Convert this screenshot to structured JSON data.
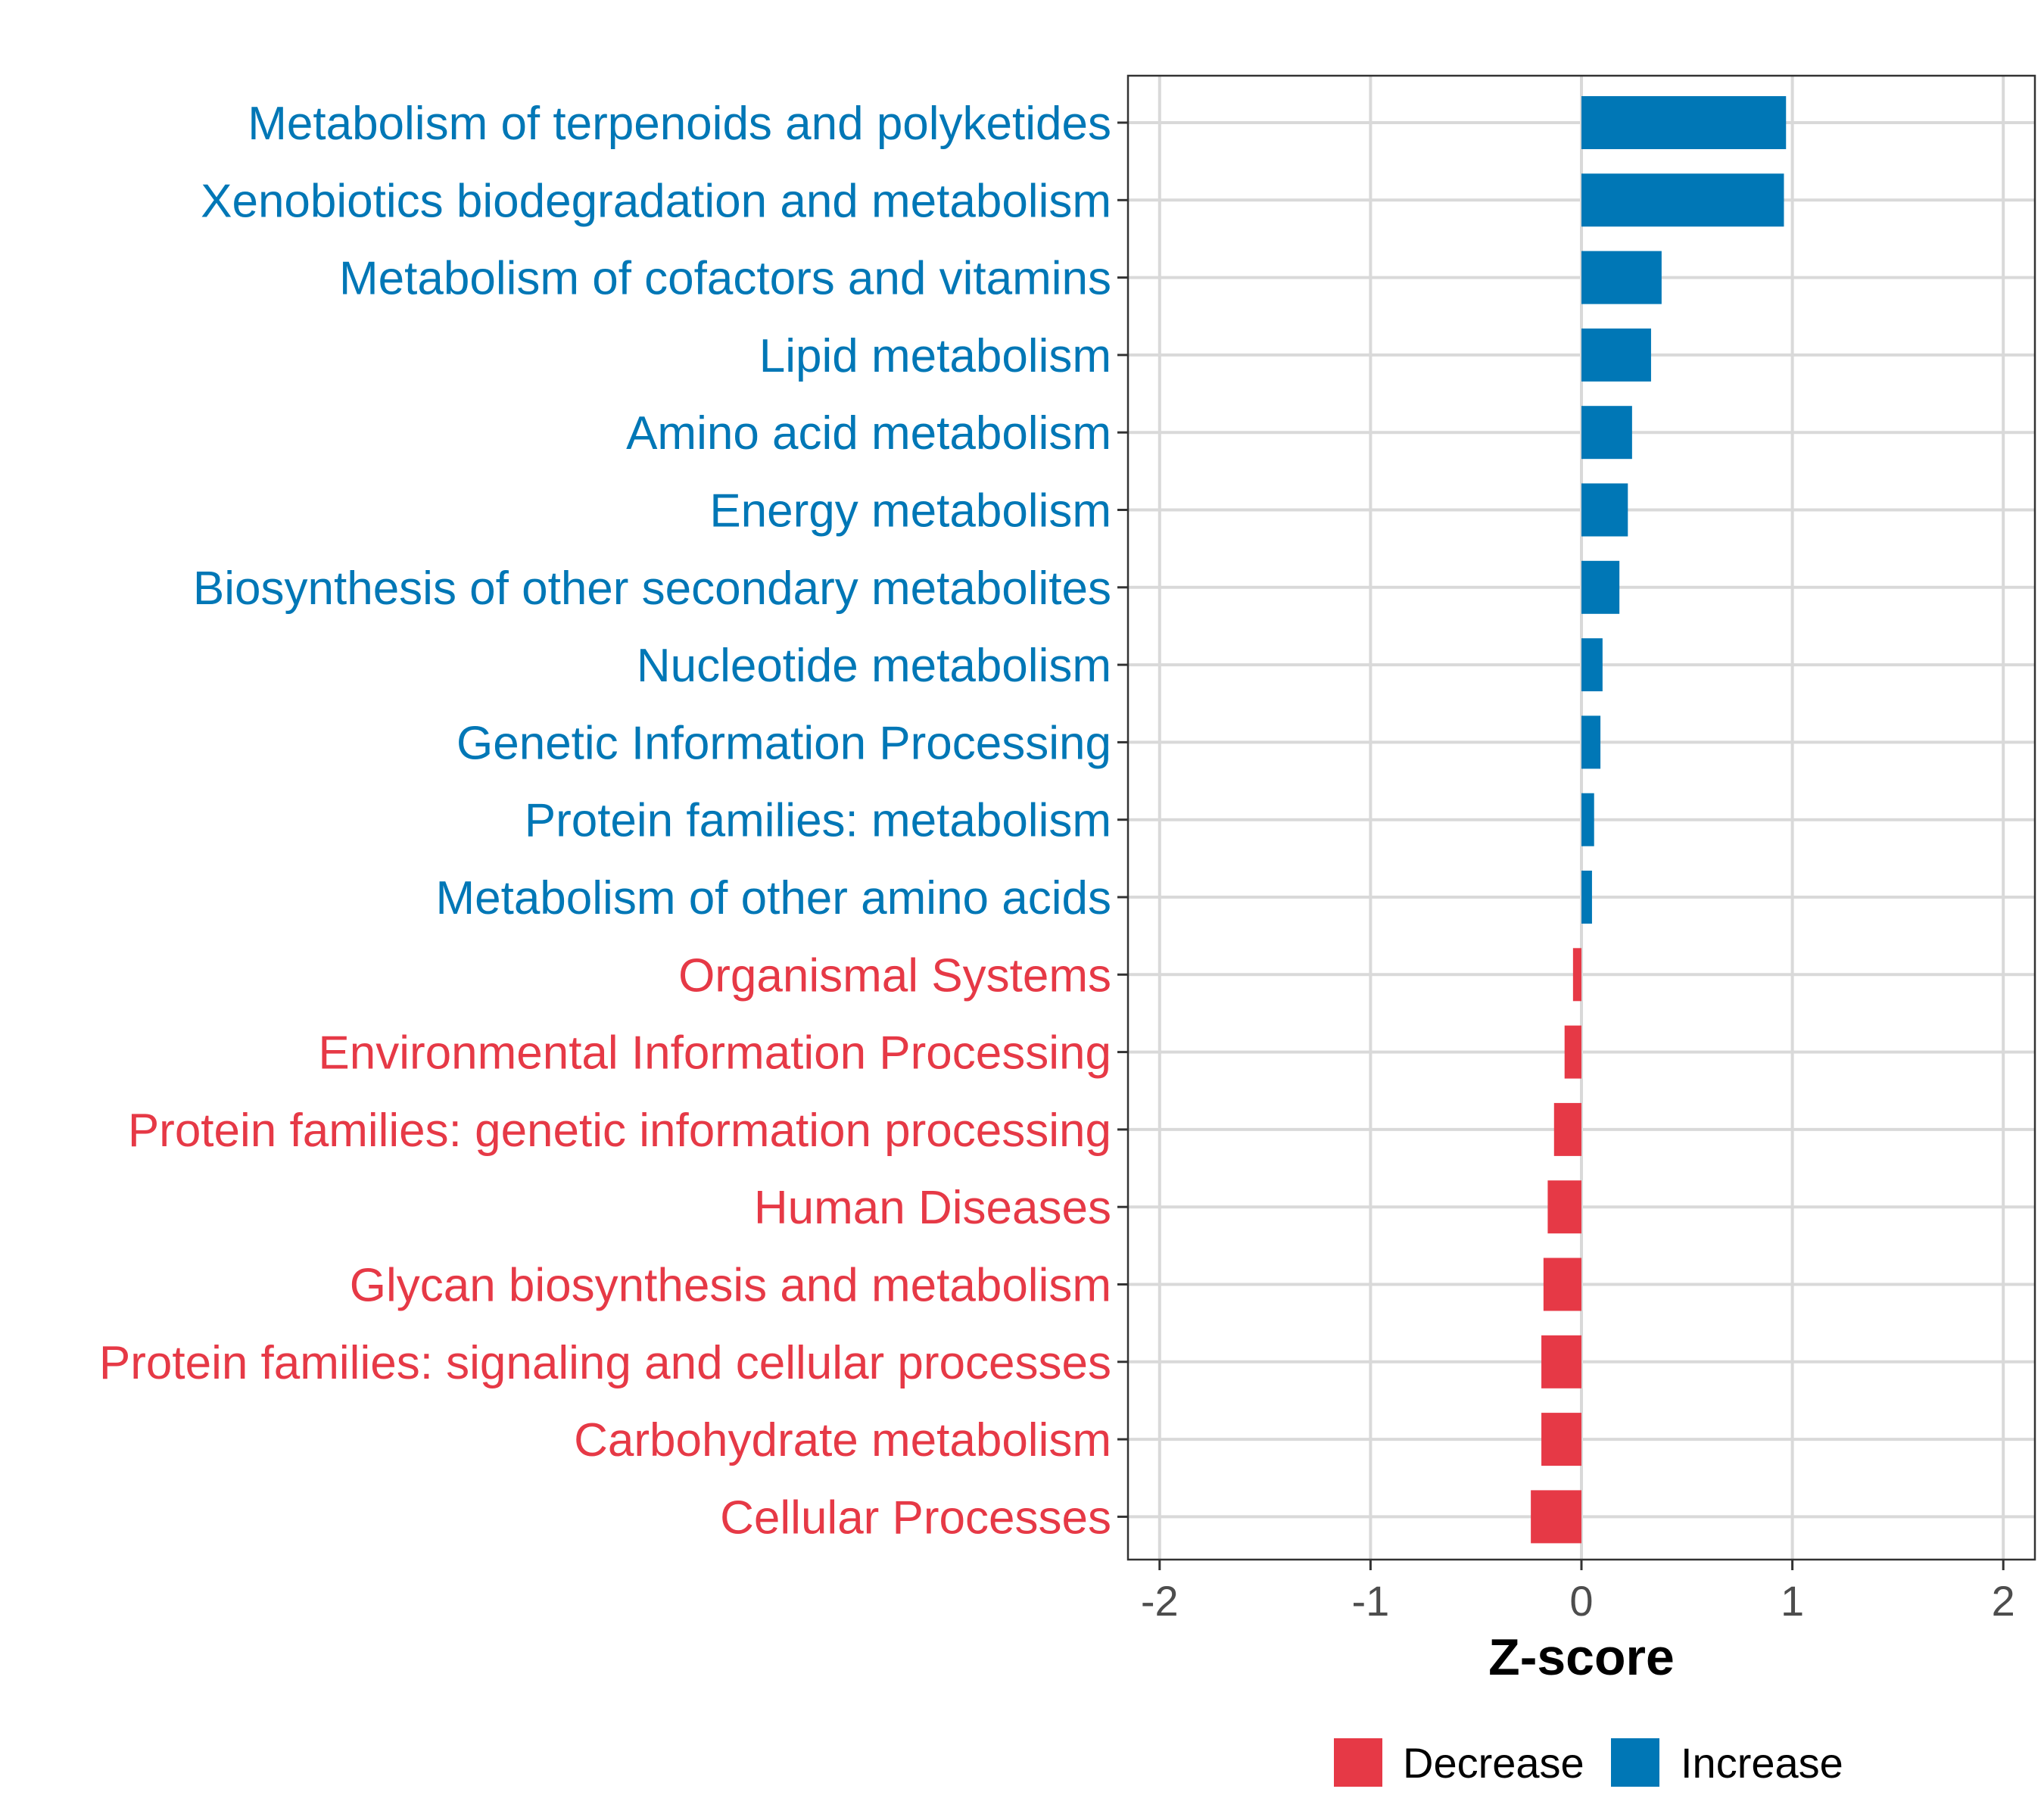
{
  "chart_data": {
    "type": "bar",
    "orientation": "horizontal",
    "categories": [
      "Metabolism of terpenoids and polyketides",
      "Xenobiotics biodegradation and metabolism",
      "Metabolism of cofactors and vitamins",
      "Lipid metabolism",
      "Amino acid metabolism",
      "Energy metabolism",
      "Biosynthesis of other secondary metabolites",
      "Nucleotide metabolism",
      "Genetic Information Processing",
      "Protein families: metabolism",
      "Metabolism of other amino acids",
      "Organismal Systems",
      "Environmental Information Processing",
      "Protein families: genetic information processing",
      "Human Diseases",
      "Glycan biosynthesis and metabolism",
      "Protein families: signaling and cellular processes",
      "Carbohydrate metabolism",
      "Cellular Processes"
    ],
    "values": [
      0.97,
      0.96,
      0.38,
      0.33,
      0.24,
      0.22,
      0.18,
      0.1,
      0.09,
      0.06,
      0.05,
      -0.04,
      -0.08,
      -0.13,
      -0.16,
      -0.18,
      -0.19,
      -0.19,
      -0.24
    ],
    "groups": [
      "Increase",
      "Increase",
      "Increase",
      "Increase",
      "Increase",
      "Increase",
      "Increase",
      "Increase",
      "Increase",
      "Increase",
      "Increase",
      "Decrease",
      "Decrease",
      "Decrease",
      "Decrease",
      "Decrease",
      "Decrease",
      "Decrease",
      "Decrease"
    ],
    "xlabel": "Z-score",
    "ylabel": "",
    "xlim": [
      -2.15,
      2.15
    ],
    "xticks": [
      -2,
      -1,
      0,
      1,
      2
    ],
    "xtick_labels": [
      "-2",
      "-1",
      "0",
      "1",
      "2"
    ],
    "grid": true,
    "legend": {
      "position": "bottom",
      "entries": [
        {
          "label": "Decrease",
          "color": "#e63946"
        },
        {
          "label": "Increase",
          "color": "#0077b6"
        }
      ]
    }
  }
}
